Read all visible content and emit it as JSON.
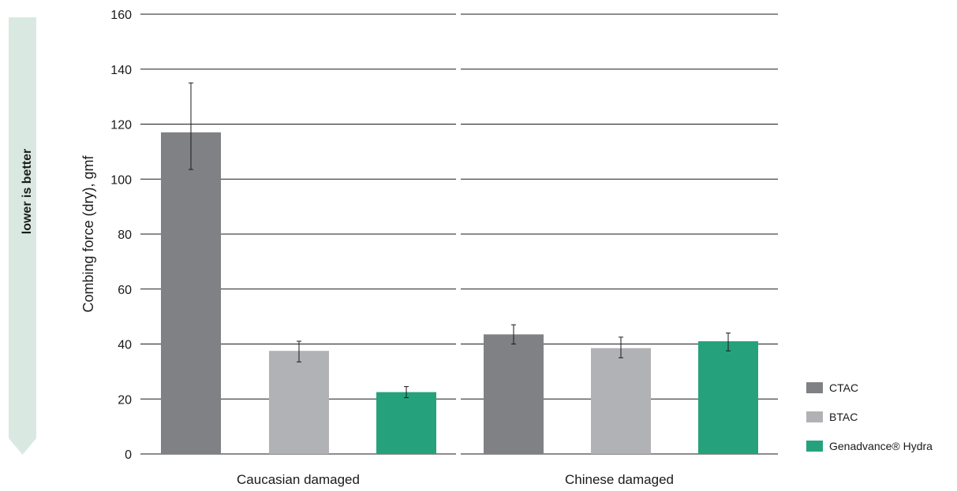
{
  "chart_data": {
    "type": "bar",
    "ylabel": "Combing force (dry), gmf",
    "ylim": [
      0,
      160
    ],
    "yticks": [
      0,
      20,
      40,
      60,
      80,
      100,
      120,
      140,
      160
    ],
    "grid": true,
    "legend_position": "bottom-right",
    "categories": [
      "Caucasian damaged",
      "Chinese damaged"
    ],
    "series": [
      {
        "name": "CTAC",
        "color": "#808184",
        "values": [
          117,
          43.5
        ],
        "error_low": [
          103.5,
          40
        ],
        "error_high": [
          135,
          47
        ]
      },
      {
        "name": "BTAC",
        "color": "#b1b2b5",
        "values": [
          37.5,
          38.5
        ],
        "error_low": [
          33.5,
          35
        ],
        "error_high": [
          41,
          42.5
        ]
      },
      {
        "name": "Genadvance® Hydra",
        "color": "#25a27c",
        "values": [
          22.5,
          41
        ],
        "error_low": [
          20.5,
          37.5
        ],
        "error_high": [
          24.5,
          44
        ]
      }
    ],
    "annotation": "lower is better",
    "annotation_color": "#d9e9e2"
  }
}
